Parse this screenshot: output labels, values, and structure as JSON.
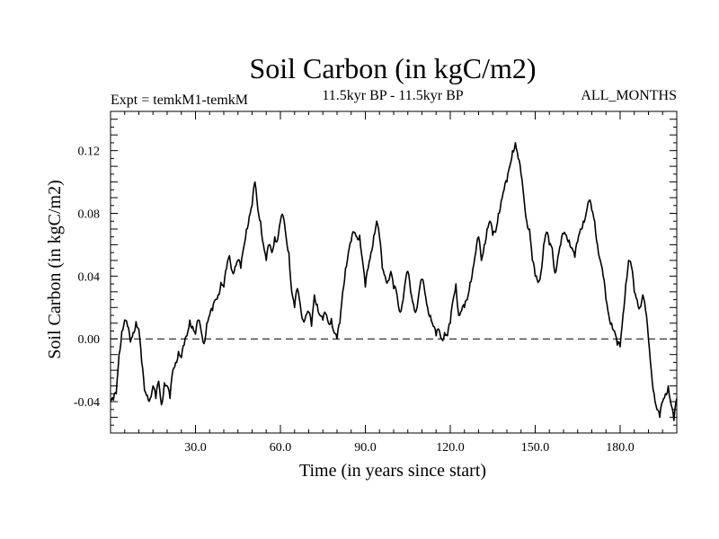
{
  "chart_data": {
    "type": "line",
    "title": "Soil Carbon (in kgC/m2)",
    "subtitle_left": "Expt = temkM1-temkM",
    "subtitle_center": "11.5kyr BP - 11.5kyr BP",
    "subtitle_right": "ALL_MONTHS",
    "xlabel": "Time (in years since start)",
    "ylabel": "Soil Carbon (in kgC/m2)",
    "xlim": [
      0,
      200
    ],
    "ylim": [
      -0.06,
      0.145
    ],
    "x_ticks": [
      30,
      60,
      90,
      120,
      150,
      180
    ],
    "x_tick_labels": [
      "30.0",
      "60.0",
      "90.0",
      "120.0",
      "150.0",
      "180.0"
    ],
    "y_ticks": [
      -0.04,
      0.0,
      0.04,
      0.08,
      0.12
    ],
    "y_tick_labels": [
      "-0.04",
      "0.00",
      "0.04",
      "0.08",
      "0.12"
    ],
    "reference_line": {
      "y": 0.0,
      "style": "dashed"
    },
    "series": [
      {
        "name": "Soil Carbon",
        "color": "#000000",
        "points": [
          [
            0,
            -0.04
          ],
          [
            1,
            -0.039
          ],
          [
            2,
            -0.035
          ],
          [
            3,
            -0.01
          ],
          [
            4,
            0.005
          ],
          [
            5,
            0.012
          ],
          [
            6,
            0.008
          ],
          [
            7,
            -0.002
          ],
          [
            8,
            0.004
          ],
          [
            9,
            0.011
          ],
          [
            10,
            0.006
          ],
          [
            11,
            -0.015
          ],
          [
            12,
            -0.033
          ],
          [
            13,
            -0.036
          ],
          [
            14,
            -0.038
          ],
          [
            15,
            -0.03
          ],
          [
            16,
            -0.038
          ],
          [
            17,
            -0.027
          ],
          [
            18,
            -0.042
          ],
          [
            19,
            -0.028
          ],
          [
            20,
            -0.03
          ],
          [
            21,
            -0.038
          ],
          [
            22,
            -0.02
          ],
          [
            23,
            -0.015
          ],
          [
            24,
            -0.008
          ],
          [
            25,
            -0.012
          ],
          [
            26,
            -0.004
          ],
          [
            27,
            0.002
          ],
          [
            28,
            0.012
          ],
          [
            29,
            0.008
          ],
          [
            30,
            0.003
          ],
          [
            31,
            0.012
          ],
          [
            32,
            0.005
          ],
          [
            33,
            -0.003
          ],
          [
            34,
            0.01
          ],
          [
            35,
            0.015
          ],
          [
            36,
            0.018
          ],
          [
            37,
            0.025
          ],
          [
            38,
            0.028
          ],
          [
            39,
            0.036
          ],
          [
            40,
            0.033
          ],
          [
            41,
            0.045
          ],
          [
            42,
            0.053
          ],
          [
            43,
            0.043
          ],
          [
            44,
            0.046
          ],
          [
            45,
            0.05
          ],
          [
            46,
            0.045
          ],
          [
            47,
            0.058
          ],
          [
            48,
            0.07
          ],
          [
            49,
            0.078
          ],
          [
            50,
            0.085
          ],
          [
            51,
            0.1
          ],
          [
            52,
            0.083
          ],
          [
            53,
            0.075
          ],
          [
            54,
            0.06
          ],
          [
            55,
            0.05
          ],
          [
            56,
            0.06
          ],
          [
            57,
            0.055
          ],
          [
            58,
            0.065
          ],
          [
            59,
            0.063
          ],
          [
            60,
            0.075
          ],
          [
            61,
            0.078
          ],
          [
            62,
            0.065
          ],
          [
            63,
            0.055
          ],
          [
            64,
            0.03
          ],
          [
            65,
            0.02
          ],
          [
            66,
            0.032
          ],
          [
            67,
            0.022
          ],
          [
            68,
            0.012
          ],
          [
            69,
            0.015
          ],
          [
            70,
            0.017
          ],
          [
            71,
            0.008
          ],
          [
            72,
            0.028
          ],
          [
            73,
            0.022
          ],
          [
            74,
            0.015
          ],
          [
            75,
            0.012
          ],
          [
            76,
            0.016
          ],
          [
            77,
            0.01
          ],
          [
            78,
            0.013
          ],
          [
            79,
            0.004
          ],
          [
            80,
            0.0
          ],
          [
            81,
            0.01
          ],
          [
            82,
            0.03
          ],
          [
            83,
            0.045
          ],
          [
            84,
            0.055
          ],
          [
            85,
            0.062
          ],
          [
            86,
            0.068
          ],
          [
            87,
            0.065
          ],
          [
            88,
            0.066
          ],
          [
            89,
            0.05
          ],
          [
            90,
            0.033
          ],
          [
            91,
            0.045
          ],
          [
            92,
            0.055
          ],
          [
            93,
            0.066
          ],
          [
            94,
            0.075
          ],
          [
            95,
            0.065
          ],
          [
            96,
            0.045
          ],
          [
            97,
            0.04
          ],
          [
            98,
            0.037
          ],
          [
            99,
            0.043
          ],
          [
            100,
            0.032
          ],
          [
            101,
            0.03
          ],
          [
            102,
            0.018
          ],
          [
            103,
            0.022
          ],
          [
            104,
            0.035
          ],
          [
            105,
            0.043
          ],
          [
            106,
            0.03
          ],
          [
            107,
            0.022
          ],
          [
            108,
            0.018
          ],
          [
            109,
            0.03
          ],
          [
            110,
            0.038
          ],
          [
            111,
            0.03
          ],
          [
            112,
            0.02
          ],
          [
            113,
            0.015
          ],
          [
            114,
            0.008
          ],
          [
            115,
            0.002
          ],
          [
            116,
            0.006
          ],
          [
            117,
            0.0
          ],
          [
            118,
            0.004
          ],
          [
            119,
            0.002
          ],
          [
            120,
            0.01
          ],
          [
            121,
            0.025
          ],
          [
            122,
            0.035
          ],
          [
            123,
            0.015
          ],
          [
            124,
            0.018
          ],
          [
            125,
            0.02
          ],
          [
            126,
            0.025
          ],
          [
            127,
            0.036
          ],
          [
            128,
            0.045
          ],
          [
            129,
            0.055
          ],
          [
            130,
            0.065
          ],
          [
            131,
            0.05
          ],
          [
            132,
            0.06
          ],
          [
            133,
            0.07
          ],
          [
            134,
            0.075
          ],
          [
            135,
            0.066
          ],
          [
            136,
            0.068
          ],
          [
            137,
            0.08
          ],
          [
            138,
            0.088
          ],
          [
            139,
            0.095
          ],
          [
            140,
            0.1
          ],
          [
            141,
            0.11
          ],
          [
            142,
            0.12
          ],
          [
            143,
            0.125
          ],
          [
            144,
            0.115
          ],
          [
            145,
            0.105
          ],
          [
            146,
            0.09
          ],
          [
            147,
            0.075
          ],
          [
            148,
            0.07
          ],
          [
            149,
            0.05
          ],
          [
            150,
            0.04
          ],
          [
            151,
            0.036
          ],
          [
            152,
            0.042
          ],
          [
            153,
            0.06
          ],
          [
            154,
            0.068
          ],
          [
            155,
            0.06
          ],
          [
            156,
            0.058
          ],
          [
            157,
            0.042
          ],
          [
            158,
            0.052
          ],
          [
            159,
            0.06
          ],
          [
            160,
            0.067
          ],
          [
            161,
            0.066
          ],
          [
            162,
            0.063
          ],
          [
            163,
            0.058
          ],
          [
            164,
            0.052
          ],
          [
            165,
            0.062
          ],
          [
            166,
            0.07
          ],
          [
            167,
            0.075
          ],
          [
            168,
            0.08
          ],
          [
            169,
            0.088
          ],
          [
            170,
            0.082
          ],
          [
            171,
            0.075
          ],
          [
            172,
            0.06
          ],
          [
            173,
            0.05
          ],
          [
            174,
            0.04
          ],
          [
            175,
            0.025
          ],
          [
            176,
            0.015
          ],
          [
            177,
            0.01
          ],
          [
            178,
            0.005
          ],
          [
            179,
            -0.004
          ],
          [
            180,
            -0.005
          ],
          [
            181,
            0.015
          ],
          [
            182,
            0.035
          ],
          [
            183,
            0.05
          ],
          [
            184,
            0.046
          ],
          [
            185,
            0.03
          ],
          [
            186,
            0.025
          ],
          [
            187,
            0.02
          ],
          [
            188,
            0.028
          ],
          [
            189,
            0.018
          ],
          [
            190,
            0.0
          ],
          [
            191,
            -0.02
          ],
          [
            192,
            -0.035
          ],
          [
            193,
            -0.045
          ],
          [
            194,
            -0.05
          ],
          [
            195,
            -0.04
          ],
          [
            196,
            -0.035
          ],
          [
            197,
            -0.03
          ],
          [
            198,
            -0.042
          ],
          [
            199,
            -0.052
          ],
          [
            200,
            -0.038
          ]
        ]
      }
    ]
  }
}
